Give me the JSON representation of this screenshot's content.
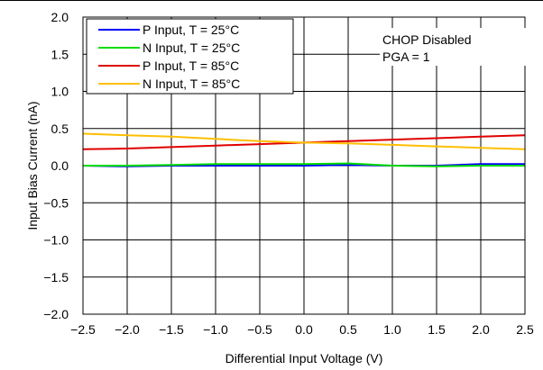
{
  "chart_data": {
    "type": "line",
    "title": "",
    "xlabel": "Differential Input Voltage (V)",
    "ylabel": "Input Bias Current (nA)",
    "xlim": [
      -2.5,
      2.5
    ],
    "ylim": [
      -2.0,
      2.0
    ],
    "x_ticks": [
      "−2.5",
      "−2.0",
      "−1.5",
      "−1.0",
      "−0.5",
      "0.0",
      "0.5",
      "1.0",
      "1.5",
      "2.0",
      "2.5"
    ],
    "y_ticks": [
      "2.0",
      "1.5",
      "1.0",
      "0.5",
      "0.0",
      "−0.5",
      "−1.0",
      "−1.5",
      "−2.0"
    ],
    "grid": true,
    "legend_position": "top-left",
    "annotation": [
      "CHOP Disabled",
      "PGA = 1"
    ],
    "x": [
      -2.5,
      -2.0,
      -1.5,
      -1.0,
      -0.5,
      0.0,
      0.5,
      1.0,
      1.5,
      2.0,
      2.5
    ],
    "series": [
      {
        "name": "P Input, T = 25°C",
        "color": "#0000ff",
        "values": [
          0.0,
          -0.01,
          0.0,
          0.0,
          0.0,
          0.0,
          0.01,
          0.0,
          0.0,
          0.02,
          0.02
        ]
      },
      {
        "name": "N Input, T = 25°C",
        "color": "#00dd00",
        "values": [
          0.0,
          0.0,
          0.01,
          0.02,
          0.02,
          0.02,
          0.03,
          0.0,
          -0.01,
          0.0,
          0.0
        ]
      },
      {
        "name": "P Input, T = 85°C",
        "color": "#e00000",
        "values": [
          0.22,
          0.23,
          0.25,
          0.27,
          0.29,
          0.31,
          0.33,
          0.35,
          0.37,
          0.39,
          0.41
        ]
      },
      {
        "name": "N Input, T = 85°C",
        "color": "#ffbf00",
        "values": [
          0.43,
          0.41,
          0.39,
          0.36,
          0.33,
          0.31,
          0.3,
          0.28,
          0.26,
          0.24,
          0.22
        ]
      }
    ]
  }
}
